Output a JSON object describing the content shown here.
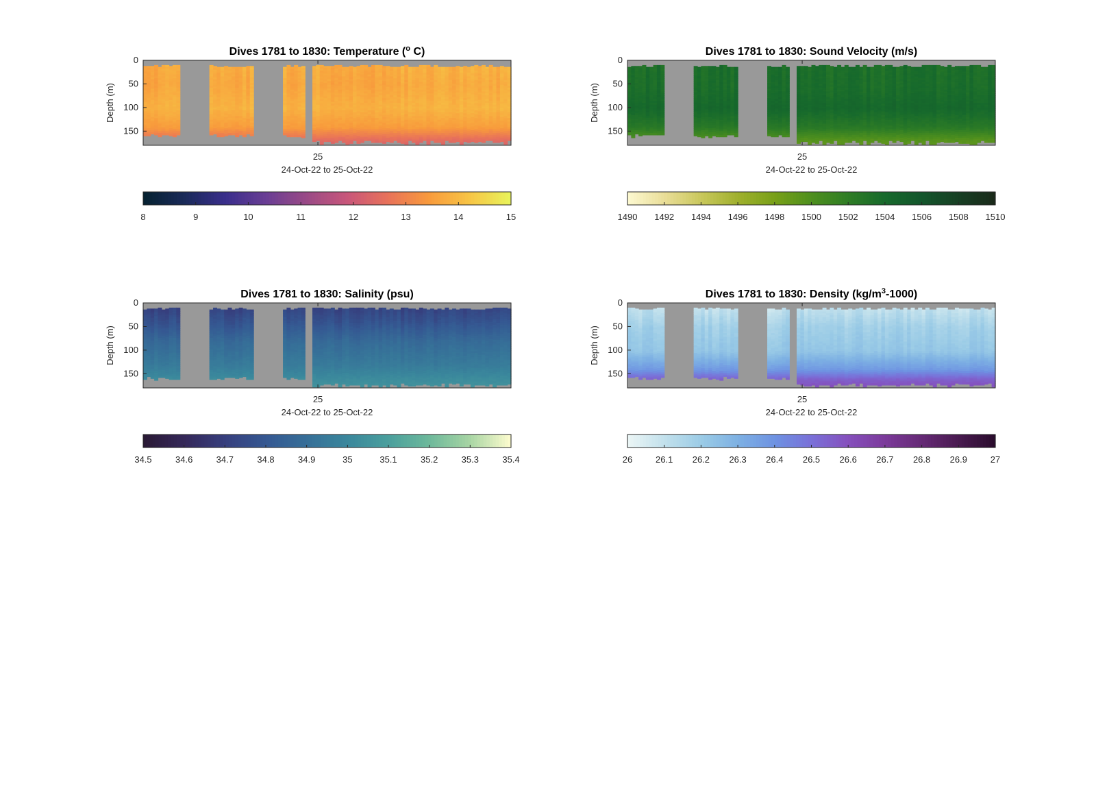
{
  "figure": {
    "background": "#ffffff",
    "nodata_color": "#999999"
  },
  "chart_data": [
    {
      "type": "heatmap",
      "title": "Dives 1781 to 1830: Temperature (",
      "title_sup": "o",
      "title_end": " C)",
      "xlabel": "24-Oct-22 to 25-Oct-22",
      "xtick_label": "25",
      "ylabel": "Depth (m)",
      "yticks": [
        "0",
        "50",
        "100",
        "150"
      ],
      "ylim": [
        180,
        0
      ],
      "columns": 50,
      "dive_gaps": [
        "1792-1796",
        "1803-1806",
        "1811"
      ],
      "colorbar": {
        "range": [
          8,
          15
        ],
        "ticks": [
          "8",
          "9",
          "10",
          "11",
          "12",
          "13",
          "14",
          "15"
        ],
        "colors": [
          "#062232",
          "#1a2a5a",
          "#3a2e8c",
          "#6a3e94",
          "#9a4a86",
          "#c8567a",
          "#e8725a",
          "#f89a3c",
          "#f7c445",
          "#e9f25a"
        ]
      },
      "profile": [
        {
          "depth": 10,
          "value": 13.8
        },
        {
          "depth": 50,
          "value": 13.7
        },
        {
          "depth": 100,
          "value": 13.9
        },
        {
          "depth": 140,
          "value": 13.5
        },
        {
          "depth": 165,
          "value": 12.6
        },
        {
          "depth": 180,
          "value": 12.2
        }
      ]
    },
    {
      "type": "heatmap",
      "title": "Dives 1781 to 1830: Sound Velocity (m/s)",
      "xlabel": "24-Oct-22 to 25-Oct-22",
      "xtick_label": "25",
      "ylabel": "Depth (m)",
      "yticks": [
        "0",
        "50",
        "100",
        "150"
      ],
      "ylim": [
        180,
        0
      ],
      "columns": 50,
      "dive_gaps": [
        "1792-1796",
        "1803-1806",
        "1811"
      ],
      "colorbar": {
        "range": [
          1490,
          1510
        ],
        "ticks": [
          "1490",
          "1492",
          "1494",
          "1496",
          "1498",
          "1500",
          "1502",
          "1504",
          "1506",
          "1508",
          "1510"
        ],
        "colors": [
          "#fcf8cf",
          "#e9dd97",
          "#c8c75b",
          "#9fb02d",
          "#78a018",
          "#4e8f1e",
          "#2f7d25",
          "#176a2c",
          "#13562c",
          "#174024",
          "#1a2a1a"
        ]
      },
      "profile": [
        {
          "depth": 10,
          "value": 1503.4
        },
        {
          "depth": 60,
          "value": 1503.6
        },
        {
          "depth": 100,
          "value": 1504.2
        },
        {
          "depth": 140,
          "value": 1502.5
        },
        {
          "depth": 165,
          "value": 1499.8
        },
        {
          "depth": 180,
          "value": 1499.0
        }
      ]
    },
    {
      "type": "heatmap",
      "title": "Dives 1781 to 1830: Salinity (psu)",
      "xlabel": "24-Oct-22 to 25-Oct-22",
      "xtick_label": "25",
      "ylabel": "Depth (m)",
      "yticks": [
        "0",
        "50",
        "100",
        "150"
      ],
      "ylim": [
        180,
        0
      ],
      "columns": 50,
      "dive_gaps": [
        "1792-1796",
        "1803-1806",
        "1811"
      ],
      "colorbar": {
        "range": [
          34.5,
          35.4
        ],
        "ticks": [
          "34.5",
          "34.6",
          "34.7",
          "34.8",
          "34.9",
          "35",
          "35.1",
          "35.2",
          "35.3",
          "35.4"
        ],
        "colors": [
          "#2a1a36",
          "#35285a",
          "#363f7e",
          "#355892",
          "#366f98",
          "#3a879c",
          "#4a9f9d",
          "#6cb89b",
          "#a6d4a3",
          "#fbfbcd"
        ]
      },
      "profile": [
        {
          "depth": 10,
          "value": 34.72
        },
        {
          "depth": 40,
          "value": 34.78
        },
        {
          "depth": 80,
          "value": 34.88
        },
        {
          "depth": 130,
          "value": 34.95
        },
        {
          "depth": 160,
          "value": 35.02
        },
        {
          "depth": 180,
          "value": 35.05
        }
      ]
    },
    {
      "type": "heatmap",
      "title": "Dives 1781 to 1830: Density (kg/m",
      "title_sup": "3",
      "title_end": "-1000)",
      "xlabel": "24-Oct-22 to 25-Oct-22",
      "xtick_label": "25",
      "ylabel": "Depth (m)",
      "yticks": [
        "0",
        "50",
        "100",
        "150"
      ],
      "ylim": [
        180,
        0
      ],
      "columns": 50,
      "dive_gaps": [
        "1792-1796",
        "1803-1806",
        "1811"
      ],
      "colorbar": {
        "range": [
          26,
          27
        ],
        "ticks": [
          "26",
          "26.1",
          "26.2",
          "26.3",
          "26.4",
          "26.5",
          "26.6",
          "26.7",
          "26.8",
          "26.9",
          "27"
        ],
        "colors": [
          "#eaf5f5",
          "#c1e0ec",
          "#9acbe6",
          "#7db0e3",
          "#6e92e2",
          "#7a70d8",
          "#8550bd",
          "#7c3a9b",
          "#662a76",
          "#4a1b52",
          "#2b0d2e"
        ]
      },
      "profile": [
        {
          "depth": 10,
          "value": 26.1
        },
        {
          "depth": 50,
          "value": 26.18
        },
        {
          "depth": 100,
          "value": 26.22
        },
        {
          "depth": 140,
          "value": 26.38
        },
        {
          "depth": 160,
          "value": 26.55
        },
        {
          "depth": 180,
          "value": 26.62
        }
      ]
    }
  ]
}
